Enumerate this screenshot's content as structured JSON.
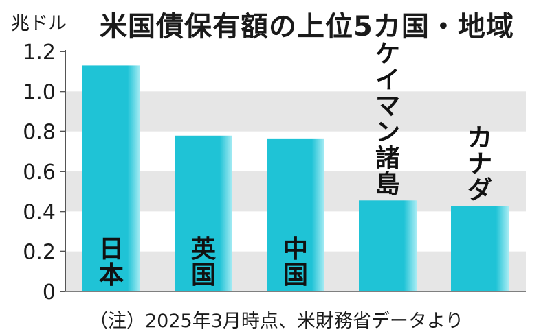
{
  "chart_data": {
    "type": "bar",
    "title": "米国債保有額の上位5カ国・地域",
    "ylabel": "兆ドル",
    "note": "（注）2025年3月時点、米財務省データより",
    "categories": [
      "日本",
      "英国",
      "中国",
      "ケイマン諸島",
      "カナダ"
    ],
    "values": [
      1.13,
      0.779,
      0.765,
      0.455,
      0.426
    ],
    "label_position": [
      "inside",
      "inside",
      "inside",
      "above",
      "above"
    ],
    "ylim": [
      0,
      1.2
    ],
    "yticks": [
      "0",
      "0.2",
      "0.4",
      "0.6",
      "0.8",
      "1.0",
      "1.2"
    ],
    "grid": "alternating bands",
    "colors": {
      "bar": "#1fc3d6",
      "bar_highlight": "#a8ecf4",
      "band": "#e6e6e6",
      "axis": "#555555"
    }
  }
}
